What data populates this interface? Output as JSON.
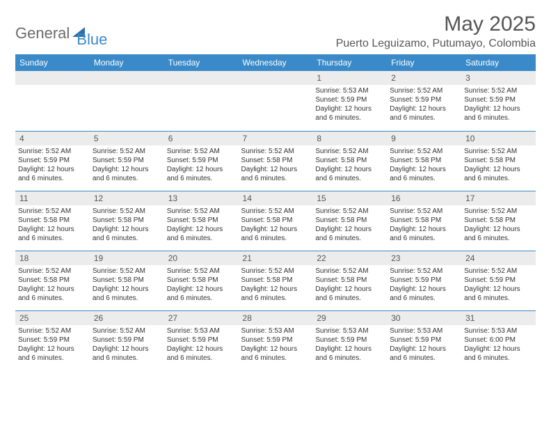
{
  "logo": {
    "general": "General",
    "blue": "Blue"
  },
  "title": "May 2025",
  "location": "Puerto Leguizamo, Putumayo, Colombia",
  "colors": {
    "header_bg": "#3a8ac9",
    "header_text": "#ffffff",
    "daynum_bg": "#ececec",
    "text": "#333333",
    "border": "#3a8ac9",
    "logo_gray": "#6b6b6b",
    "logo_blue": "#3a8ac9"
  },
  "day_labels": [
    "Sunday",
    "Monday",
    "Tuesday",
    "Wednesday",
    "Thursday",
    "Friday",
    "Saturday"
  ],
  "weeks": [
    [
      null,
      null,
      null,
      null,
      {
        "n": "1",
        "sr": "5:53 AM",
        "ss": "5:59 PM",
        "dl": "12 hours and 6 minutes."
      },
      {
        "n": "2",
        "sr": "5:52 AM",
        "ss": "5:59 PM",
        "dl": "12 hours and 6 minutes."
      },
      {
        "n": "3",
        "sr": "5:52 AM",
        "ss": "5:59 PM",
        "dl": "12 hours and 6 minutes."
      }
    ],
    [
      {
        "n": "4",
        "sr": "5:52 AM",
        "ss": "5:59 PM",
        "dl": "12 hours and 6 minutes."
      },
      {
        "n": "5",
        "sr": "5:52 AM",
        "ss": "5:59 PM",
        "dl": "12 hours and 6 minutes."
      },
      {
        "n": "6",
        "sr": "5:52 AM",
        "ss": "5:59 PM",
        "dl": "12 hours and 6 minutes."
      },
      {
        "n": "7",
        "sr": "5:52 AM",
        "ss": "5:58 PM",
        "dl": "12 hours and 6 minutes."
      },
      {
        "n": "8",
        "sr": "5:52 AM",
        "ss": "5:58 PM",
        "dl": "12 hours and 6 minutes."
      },
      {
        "n": "9",
        "sr": "5:52 AM",
        "ss": "5:58 PM",
        "dl": "12 hours and 6 minutes."
      },
      {
        "n": "10",
        "sr": "5:52 AM",
        "ss": "5:58 PM",
        "dl": "12 hours and 6 minutes."
      }
    ],
    [
      {
        "n": "11",
        "sr": "5:52 AM",
        "ss": "5:58 PM",
        "dl": "12 hours and 6 minutes."
      },
      {
        "n": "12",
        "sr": "5:52 AM",
        "ss": "5:58 PM",
        "dl": "12 hours and 6 minutes."
      },
      {
        "n": "13",
        "sr": "5:52 AM",
        "ss": "5:58 PM",
        "dl": "12 hours and 6 minutes."
      },
      {
        "n": "14",
        "sr": "5:52 AM",
        "ss": "5:58 PM",
        "dl": "12 hours and 6 minutes."
      },
      {
        "n": "15",
        "sr": "5:52 AM",
        "ss": "5:58 PM",
        "dl": "12 hours and 6 minutes."
      },
      {
        "n": "16",
        "sr": "5:52 AM",
        "ss": "5:58 PM",
        "dl": "12 hours and 6 minutes."
      },
      {
        "n": "17",
        "sr": "5:52 AM",
        "ss": "5:58 PM",
        "dl": "12 hours and 6 minutes."
      }
    ],
    [
      {
        "n": "18",
        "sr": "5:52 AM",
        "ss": "5:58 PM",
        "dl": "12 hours and 6 minutes."
      },
      {
        "n": "19",
        "sr": "5:52 AM",
        "ss": "5:58 PM",
        "dl": "12 hours and 6 minutes."
      },
      {
        "n": "20",
        "sr": "5:52 AM",
        "ss": "5:58 PM",
        "dl": "12 hours and 6 minutes."
      },
      {
        "n": "21",
        "sr": "5:52 AM",
        "ss": "5:58 PM",
        "dl": "12 hours and 6 minutes."
      },
      {
        "n": "22",
        "sr": "5:52 AM",
        "ss": "5:58 PM",
        "dl": "12 hours and 6 minutes."
      },
      {
        "n": "23",
        "sr": "5:52 AM",
        "ss": "5:59 PM",
        "dl": "12 hours and 6 minutes."
      },
      {
        "n": "24",
        "sr": "5:52 AM",
        "ss": "5:59 PM",
        "dl": "12 hours and 6 minutes."
      }
    ],
    [
      {
        "n": "25",
        "sr": "5:52 AM",
        "ss": "5:59 PM",
        "dl": "12 hours and 6 minutes."
      },
      {
        "n": "26",
        "sr": "5:52 AM",
        "ss": "5:59 PM",
        "dl": "12 hours and 6 minutes."
      },
      {
        "n": "27",
        "sr": "5:53 AM",
        "ss": "5:59 PM",
        "dl": "12 hours and 6 minutes."
      },
      {
        "n": "28",
        "sr": "5:53 AM",
        "ss": "5:59 PM",
        "dl": "12 hours and 6 minutes."
      },
      {
        "n": "29",
        "sr": "5:53 AM",
        "ss": "5:59 PM",
        "dl": "12 hours and 6 minutes."
      },
      {
        "n": "30",
        "sr": "5:53 AM",
        "ss": "5:59 PM",
        "dl": "12 hours and 6 minutes."
      },
      {
        "n": "31",
        "sr": "5:53 AM",
        "ss": "6:00 PM",
        "dl": "12 hours and 6 minutes."
      }
    ]
  ],
  "labels": {
    "sunrise_prefix": "Sunrise: ",
    "sunset_prefix": "Sunset: ",
    "daylight_prefix": "Daylight: "
  }
}
